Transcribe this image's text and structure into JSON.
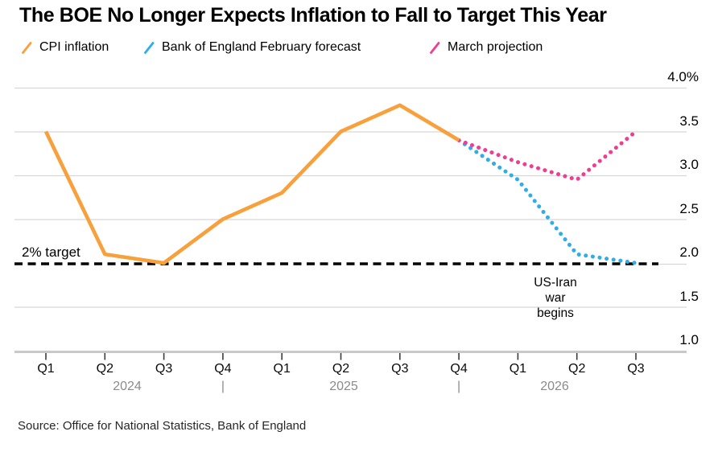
{
  "chart_data": {
    "type": "line",
    "title": "The BOE No Longer Expects Inflation to Fall to Target This Year",
    "source": "Source: Office for National Statistics, Bank of England",
    "legend_position": "top",
    "grid": "horizontal",
    "ylim": [
      1.0,
      4.0
    ],
    "y_ticks": [
      {
        "label": "4.0%",
        "value": 4.0
      },
      {
        "label": "3.5",
        "value": 3.5
      },
      {
        "label": "3.0",
        "value": 3.0
      },
      {
        "label": "2.5",
        "value": 2.5
      },
      {
        "label": "2.0",
        "value": 2.0
      },
      {
        "label": "1.5",
        "value": 1.5
      },
      {
        "label": "1.0",
        "value": 1.0
      }
    ],
    "x_categories": [
      "Q1",
      "Q2",
      "Q3",
      "Q4",
      "Q1",
      "Q2",
      "Q3",
      "Q4",
      "Q1",
      "Q2",
      "Q3"
    ],
    "x_years": [
      "2024",
      "2025",
      "2026"
    ],
    "year_separator": "|",
    "series": [
      {
        "name": "CPI inflation",
        "color": "#F7A03C",
        "line_style": "solid",
        "start_index": 0,
        "values": [
          3.5,
          2.1,
          2.0,
          2.5,
          2.8,
          3.5,
          3.8,
          3.4
        ]
      },
      {
        "name": "Bank of England February forecast",
        "color": "#2FADE8",
        "line_style": "dotted",
        "start_index": 7,
        "values": [
          3.4,
          2.95,
          2.1,
          2.0
        ]
      },
      {
        "name": "March projection",
        "color": "#EF3D92",
        "line_style": "dotted",
        "start_index": 7,
        "values": [
          3.4,
          3.15,
          2.95,
          3.5
        ]
      }
    ],
    "target_line": {
      "label": "2% target",
      "value": 2.0,
      "color": "#000000",
      "style": "dashed"
    },
    "annotation": {
      "text": "US-Iran\nwar\nbegins"
    }
  }
}
